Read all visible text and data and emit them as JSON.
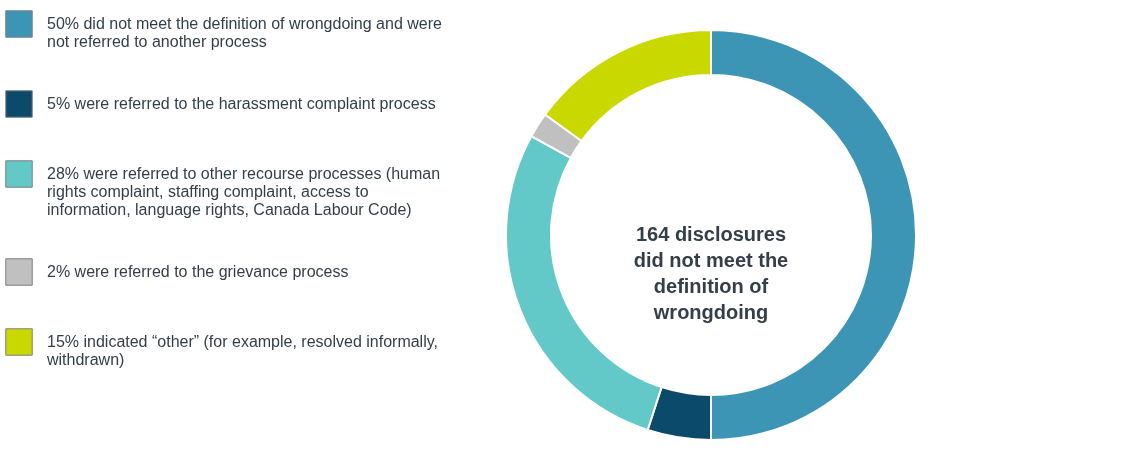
{
  "chart_data": {
    "type": "donut",
    "categories": [
      "did not meet the definition of wrongdoing and were not referred to another process",
      "were referred to the harassment complaint process",
      "were referred to other recourse processes (human rights complaint, staffing complaint, access to information, language rights, Canada Labour Code)",
      "were referred to the grievance process",
      "indicated “other” (for example, resolved informally, withdrawn)"
    ],
    "values": [
      50,
      5,
      28,
      2,
      15
    ],
    "value_labels": [
      "50%",
      "5%",
      "28%",
      "2%",
      "15%"
    ],
    "colors": [
      "#3d95b5",
      "#0b4a6a",
      "#63c9c8",
      "#c0c0c0",
      "#c9d900"
    ],
    "annotations": [
      "164 disclosures did not meet the definition of wrongdoing"
    ],
    "legend": "left"
  }
}
